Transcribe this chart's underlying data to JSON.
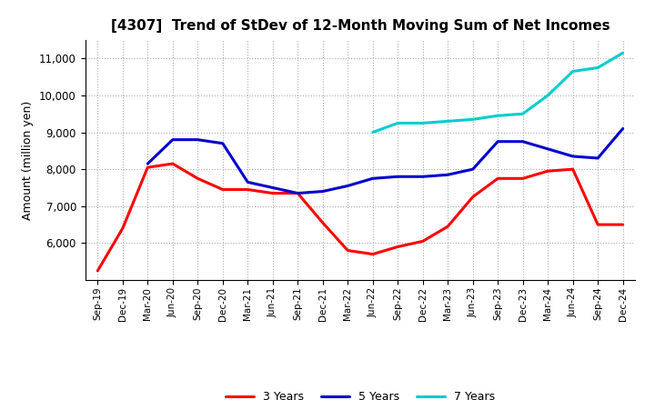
{
  "title": "[4307]  Trend of StDev of 12-Month Moving Sum of Net Incomes",
  "ylabel": "Amount (million yen)",
  "x_labels": [
    "Sep-19",
    "Dec-19",
    "Mar-20",
    "Jun-20",
    "Sep-20",
    "Dec-20",
    "Mar-21",
    "Jun-21",
    "Sep-21",
    "Dec-21",
    "Mar-22",
    "Jun-22",
    "Sep-22",
    "Dec-22",
    "Mar-23",
    "Jun-23",
    "Sep-23",
    "Dec-23",
    "Mar-24",
    "Jun-24",
    "Sep-24",
    "Dec-24"
  ],
  "series": {
    "3 Years": {
      "color": "#ff0000",
      "values": [
        5250,
        6400,
        8050,
        8150,
        7750,
        7450,
        7450,
        7350,
        7350,
        6550,
        5800,
        5700,
        5900,
        6050,
        6450,
        7250,
        7750,
        7750,
        7950,
        8000,
        6500,
        6500
      ]
    },
    "5 Years": {
      "color": "#0000cc",
      "values": [
        null,
        null,
        8150,
        8800,
        8800,
        8700,
        7650,
        7500,
        7350,
        7400,
        7550,
        7750,
        7800,
        7800,
        7850,
        8000,
        8750,
        8750,
        8550,
        8350,
        8300,
        9100
      ]
    },
    "7 Years": {
      "color": "#00cccc",
      "values": [
        null,
        null,
        null,
        null,
        null,
        null,
        null,
        null,
        null,
        null,
        null,
        9000,
        9250,
        9250,
        9300,
        9350,
        9450,
        9500,
        10000,
        10650,
        10750,
        11150
      ]
    },
    "10 Years": {
      "color": "#006600",
      "values": [
        null,
        null,
        null,
        null,
        null,
        null,
        null,
        null,
        null,
        null,
        null,
        null,
        null,
        null,
        null,
        null,
        null,
        null,
        null,
        null,
        null,
        null
      ]
    }
  },
  "ylim": [
    5000,
    11500
  ],
  "yticks": [
    6000,
    7000,
    8000,
    9000,
    10000,
    11000
  ],
  "background_color": "#ffffff",
  "grid_color": "#aaaaaa"
}
